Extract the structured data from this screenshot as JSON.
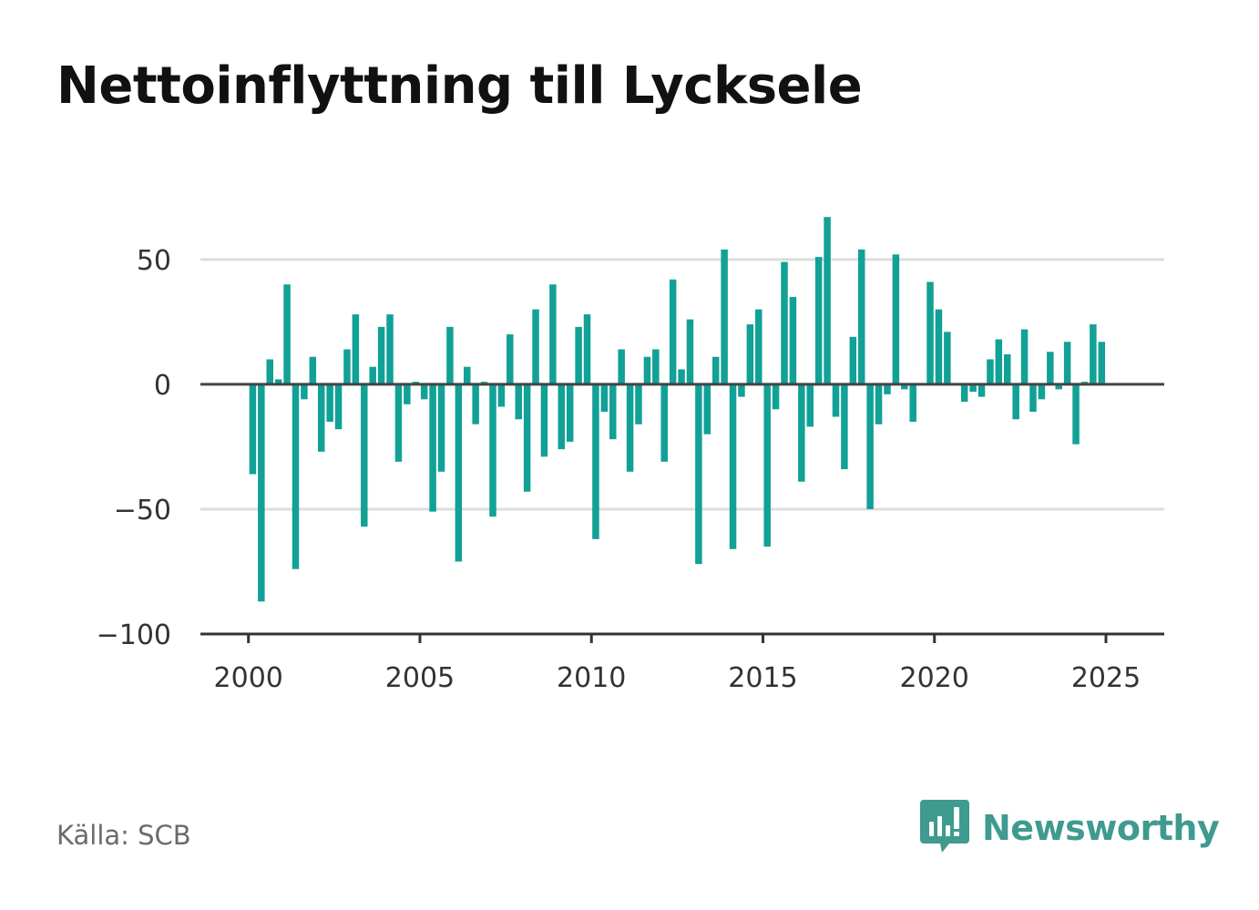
{
  "title": "Nettoinflyttning till Lycksele",
  "source": "Källa: SCB",
  "brand": {
    "name": "Newsworthy",
    "icon": "newsworthy-logo-icon",
    "color": "#3f9a8f"
  },
  "colors": {
    "bar": "#11a196",
    "zero_line": "#444444",
    "grid": "#dddddd",
    "axis": "#333333"
  },
  "chart_data": {
    "type": "bar",
    "grid": "horizontal",
    "ylim": [
      -100,
      70
    ],
    "xlim": [
      1998.6,
      2026.7
    ],
    "yticks": [
      50,
      0,
      -50,
      -100
    ],
    "ytick_labels": [
      "50",
      "0",
      "−50",
      "−100"
    ],
    "xticks": [
      2000,
      2005,
      2010,
      2015,
      2020,
      2025
    ],
    "xtick_labels": [
      "2000",
      "2005",
      "2010",
      "2015",
      "2020",
      "2025"
    ],
    "x": [
      2000.125,
      2000.375,
      2000.625,
      2000.875,
      2001.125,
      2001.375,
      2001.625,
      2001.875,
      2002.125,
      2002.375,
      2002.625,
      2002.875,
      2003.125,
      2003.375,
      2003.625,
      2003.875,
      2004.125,
      2004.375,
      2004.625,
      2004.875,
      2005.125,
      2005.375,
      2005.625,
      2005.875,
      2006.125,
      2006.375,
      2006.625,
      2006.875,
      2007.125,
      2007.375,
      2007.625,
      2007.875,
      2008.125,
      2008.375,
      2008.625,
      2008.875,
      2009.125,
      2009.375,
      2009.625,
      2009.875,
      2010.125,
      2010.375,
      2010.625,
      2010.875,
      2011.125,
      2011.375,
      2011.625,
      2011.875,
      2012.125,
      2012.375,
      2012.625,
      2012.875,
      2013.125,
      2013.375,
      2013.625,
      2013.875,
      2014.125,
      2014.375,
      2014.625,
      2014.875,
      2015.125,
      2015.375,
      2015.625,
      2015.875,
      2016.125,
      2016.375,
      2016.625,
      2016.875,
      2017.125,
      2017.375,
      2017.625,
      2017.875,
      2018.125,
      2018.375,
      2018.625,
      2018.875,
      2019.125,
      2019.375,
      2019.625,
      2019.875,
      2020.125,
      2020.375,
      2020.625,
      2020.875,
      2021.125,
      2021.375,
      2021.625,
      2021.875,
      2022.125,
      2022.375,
      2022.625,
      2022.875,
      2023.125,
      2023.375,
      2023.625,
      2023.875,
      2024.125,
      2024.375,
      2024.625,
      2024.875,
      2025.125,
      2025.375
    ],
    "series": [
      {
        "values": [
          -36,
          -87,
          10,
          2,
          40,
          -74,
          -6,
          11,
          -27,
          -15,
          -18,
          14,
          28,
          -57,
          7,
          23,
          28,
          -31,
          -8,
          1,
          -6,
          -51,
          -35,
          23,
          -71,
          7,
          -16,
          1,
          -53,
          -9,
          20,
          -14,
          -43,
          30,
          -29,
          40,
          -26,
          -23,
          23,
          28,
          -62,
          -11,
          -22,
          14,
          -35,
          -16,
          11,
          14,
          -31,
          42,
          6,
          26,
          -72,
          -20,
          11,
          54,
          -66,
          -5,
          24,
          30,
          -65,
          -10,
          49,
          35,
          -39,
          -17,
          51,
          67,
          -13,
          -34,
          19,
          54,
          -50,
          -16,
          -4,
          52,
          -2,
          -15,
          0,
          41,
          30,
          21,
          0,
          -7,
          -3,
          -5,
          10,
          18,
          12,
          -14,
          22,
          -11,
          -6,
          13,
          -2,
          17,
          -24,
          1,
          24,
          17,
          0,
          0
        ]
      }
    ]
  }
}
